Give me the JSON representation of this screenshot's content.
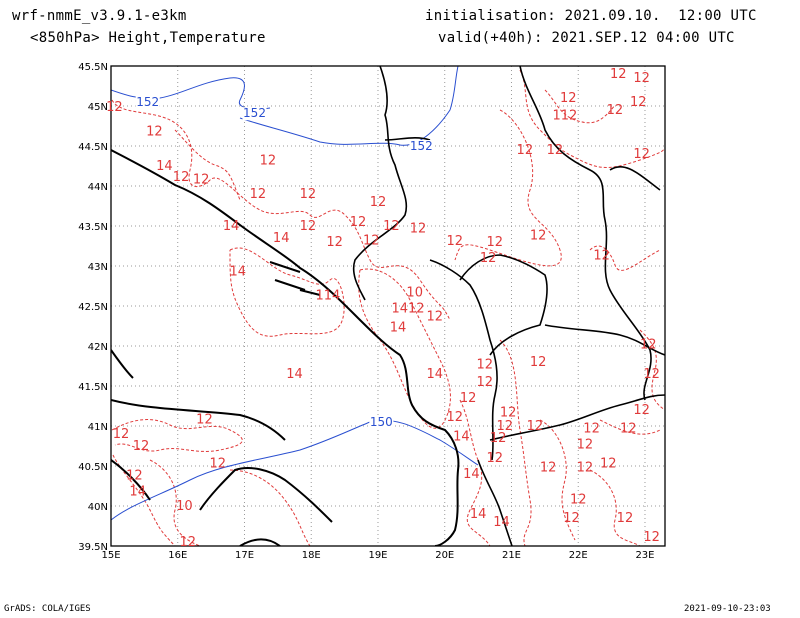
{
  "header": {
    "model": "wrf-nmmE_v3.9.1-e3km",
    "field": "<850hPa> Height,Temperature",
    "init": "initialisation: 2021.09.10.  12:00 UTC",
    "valid": "valid(+40h): 2021.SEP.12 04:00 UTC"
  },
  "footer": {
    "left": "GrADS: COLA/IGES",
    "right": "2021-09-10-23:03"
  },
  "colors": {
    "temperature": "#e03a3a",
    "height": "#2a4fd0",
    "coast": "#000000",
    "grid": "#9a9a9a"
  },
  "map": {
    "lon_range": [
      15,
      23.3
    ],
    "lat_range": [
      39.5,
      45.5
    ],
    "lon_ticks": [
      "15E",
      "16E",
      "17E",
      "18E",
      "19E",
      "20E",
      "21E",
      "22E",
      "23E"
    ],
    "lat_ticks": [
      "45.5N",
      "45N",
      "44.5N",
      "44N",
      "43.5N",
      "43N",
      "42.5N",
      "42N",
      "41.5N",
      "41N",
      "40.5N",
      "40N",
      "39.5N"
    ],
    "height_labels": [
      {
        "text": "152",
        "lon": 15.55,
        "lat": 45.0
      },
      {
        "text": "152",
        "lon": 17.15,
        "lat": 44.86
      },
      {
        "text": "152",
        "lon": 19.65,
        "lat": 44.45
      },
      {
        "text": "150",
        "lon": 19.05,
        "lat": 41.0
      }
    ],
    "temp_labels": [
      {
        "text": "12",
        "lon": 22.6,
        "lat": 45.35
      },
      {
        "text": "12",
        "lon": 22.95,
        "lat": 45.3
      },
      {
        "text": "12",
        "lon": 21.85,
        "lat": 45.05
      },
      {
        "text": "12",
        "lon": 22.9,
        "lat": 45.0
      },
      {
        "text": "112",
        "lon": 21.8,
        "lat": 44.83
      },
      {
        "text": "12",
        "lon": 22.55,
        "lat": 44.9
      },
      {
        "text": "12",
        "lon": 15.05,
        "lat": 44.94
      },
      {
        "text": "12",
        "lon": 15.65,
        "lat": 44.63
      },
      {
        "text": "12",
        "lon": 21.2,
        "lat": 44.4
      },
      {
        "text": "12",
        "lon": 21.65,
        "lat": 44.4
      },
      {
        "text": "12",
        "lon": 22.95,
        "lat": 44.35
      },
      {
        "text": "12",
        "lon": 17.35,
        "lat": 44.27
      },
      {
        "text": "14",
        "lon": 15.8,
        "lat": 44.2
      },
      {
        "text": "12",
        "lon": 16.35,
        "lat": 44.03
      },
      {
        "text": "12",
        "lon": 16.05,
        "lat": 44.06
      },
      {
        "text": "12",
        "lon": 17.2,
        "lat": 43.85
      },
      {
        "text": "12",
        "lon": 17.95,
        "lat": 43.85
      },
      {
        "text": "12",
        "lon": 19.0,
        "lat": 43.75
      },
      {
        "text": "14",
        "lon": 16.8,
        "lat": 43.45
      },
      {
        "text": "12",
        "lon": 17.95,
        "lat": 43.45
      },
      {
        "text": "12",
        "lon": 18.7,
        "lat": 43.5
      },
      {
        "text": "12",
        "lon": 19.2,
        "lat": 43.45
      },
      {
        "text": "14",
        "lon": 17.55,
        "lat": 43.3
      },
      {
        "text": "12",
        "lon": 18.35,
        "lat": 43.25
      },
      {
        "text": "12",
        "lon": 18.9,
        "lat": 43.27
      },
      {
        "text": "12",
        "lon": 19.6,
        "lat": 43.42
      },
      {
        "text": "12",
        "lon": 20.15,
        "lat": 43.26
      },
      {
        "text": "12",
        "lon": 20.75,
        "lat": 43.25
      },
      {
        "text": "12",
        "lon": 21.4,
        "lat": 43.33
      },
      {
        "text": "12",
        "lon": 22.35,
        "lat": 43.08
      },
      {
        "text": "14",
        "lon": 16.9,
        "lat": 42.88
      },
      {
        "text": "12",
        "lon": 20.65,
        "lat": 43.05
      },
      {
        "text": "114",
        "lon": 18.25,
        "lat": 42.58
      },
      {
        "text": "10",
        "lon": 19.55,
        "lat": 42.62
      },
      {
        "text": "1412",
        "lon": 19.45,
        "lat": 42.42
      },
      {
        "text": "12",
        "lon": 19.85,
        "lat": 42.32
      },
      {
        "text": "14",
        "lon": 19.3,
        "lat": 42.18
      },
      {
        "text": "12",
        "lon": 23.05,
        "lat": 41.97
      },
      {
        "text": "12",
        "lon": 21.4,
        "lat": 41.75
      },
      {
        "text": "12",
        "lon": 20.6,
        "lat": 41.72
      },
      {
        "text": "14",
        "lon": 17.75,
        "lat": 41.6
      },
      {
        "text": "14",
        "lon": 19.85,
        "lat": 41.6
      },
      {
        "text": "12",
        "lon": 20.6,
        "lat": 41.5
      },
      {
        "text": "12",
        "lon": 23.1,
        "lat": 41.6
      },
      {
        "text": "12",
        "lon": 20.35,
        "lat": 41.3
      },
      {
        "text": "12",
        "lon": 20.15,
        "lat": 41.06
      },
      {
        "text": "12",
        "lon": 20.95,
        "lat": 41.12
      },
      {
        "text": "12",
        "lon": 22.95,
        "lat": 41.15
      },
      {
        "text": "12",
        "lon": 16.4,
        "lat": 41.03
      },
      {
        "text": "12",
        "lon": 20.9,
        "lat": 40.95
      },
      {
        "text": "12",
        "lon": 21.35,
        "lat": 40.95
      },
      {
        "text": "12",
        "lon": 22.2,
        "lat": 40.92
      },
      {
        "text": "12",
        "lon": 22.75,
        "lat": 40.92
      },
      {
        "text": "12",
        "lon": 15.15,
        "lat": 40.85
      },
      {
        "text": "12",
        "lon": 15.45,
        "lat": 40.7
      },
      {
        "text": "14",
        "lon": 20.25,
        "lat": 40.82
      },
      {
        "text": "12",
        "lon": 20.8,
        "lat": 40.8
      },
      {
        "text": "12",
        "lon": 22.1,
        "lat": 40.72
      },
      {
        "text": "12",
        "lon": 16.6,
        "lat": 40.48
      },
      {
        "text": "12",
        "lon": 20.75,
        "lat": 40.55
      },
      {
        "text": "12",
        "lon": 21.55,
        "lat": 40.43
      },
      {
        "text": "12",
        "lon": 22.1,
        "lat": 40.43
      },
      {
        "text": "12",
        "lon": 22.45,
        "lat": 40.48
      },
      {
        "text": "12",
        "lon": 15.35,
        "lat": 40.33
      },
      {
        "text": "14",
        "lon": 20.4,
        "lat": 40.35
      },
      {
        "text": "14",
        "lon": 15.4,
        "lat": 40.13
      },
      {
        "text": "12",
        "lon": 22.0,
        "lat": 40.03
      },
      {
        "text": "10",
        "lon": 16.1,
        "lat": 39.95
      },
      {
        "text": "14",
        "lon": 20.5,
        "lat": 39.85
      },
      {
        "text": "14",
        "lon": 20.85,
        "lat": 39.75
      },
      {
        "text": "12",
        "lon": 21.9,
        "lat": 39.8
      },
      {
        "text": "12",
        "lon": 22.7,
        "lat": 39.8
      },
      {
        "text": "12",
        "lon": 23.1,
        "lat": 39.56
      },
      {
        "text": "12",
        "lon": 16.15,
        "lat": 39.5
      }
    ]
  }
}
